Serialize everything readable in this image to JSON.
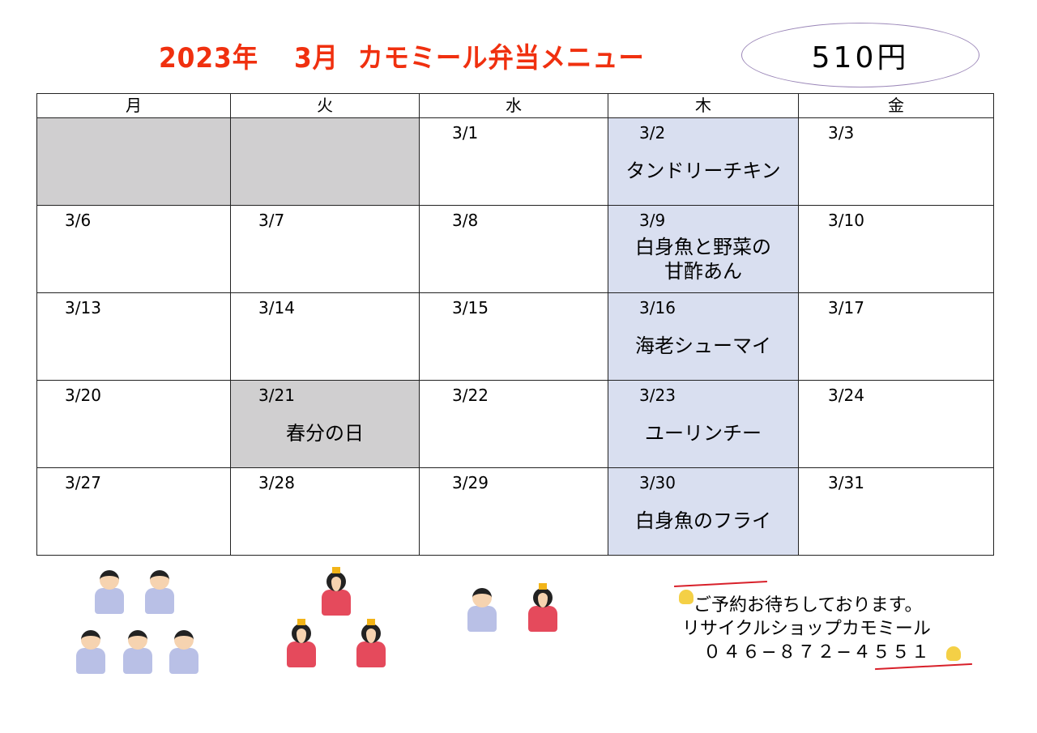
{
  "title": "2023年　 3月  カモミール弁当メニュー",
  "price": "510円",
  "weekdays": [
    "月",
    "火",
    "水",
    "木",
    "金"
  ],
  "weeks": [
    [
      {
        "date": "",
        "menu": "",
        "style": "gray"
      },
      {
        "date": "",
        "menu": "",
        "style": "gray"
      },
      {
        "date": "3/1",
        "menu": ""
      },
      {
        "date": "3/2",
        "menu": "タンドリーチキン",
        "style": "blue"
      },
      {
        "date": "3/3",
        "menu": ""
      }
    ],
    [
      {
        "date": "3/6",
        "menu": ""
      },
      {
        "date": "3/7",
        "menu": ""
      },
      {
        "date": "3/8",
        "menu": ""
      },
      {
        "date": "3/9",
        "menu": "白身魚と野菜の\n甘酢あん",
        "style": "blue"
      },
      {
        "date": "3/10",
        "menu": ""
      }
    ],
    [
      {
        "date": "3/13",
        "menu": ""
      },
      {
        "date": "3/14",
        "menu": ""
      },
      {
        "date": "3/15",
        "menu": ""
      },
      {
        "date": "3/16",
        "menu": "海老シューマイ",
        "style": "blue"
      },
      {
        "date": "3/17",
        "menu": ""
      }
    ],
    [
      {
        "date": "3/20",
        "menu": ""
      },
      {
        "date": "3/21",
        "menu": "春分の日",
        "style": "gray"
      },
      {
        "date": "3/22",
        "menu": ""
      },
      {
        "date": "3/23",
        "menu": "ユーリンチー",
        "style": "blue"
      },
      {
        "date": "3/24",
        "menu": ""
      }
    ],
    [
      {
        "date": "3/27",
        "menu": ""
      },
      {
        "date": "3/28",
        "menu": ""
      },
      {
        "date": "3/29",
        "menu": ""
      },
      {
        "date": "3/30",
        "menu": "白身魚のフライ",
        "style": "blue"
      },
      {
        "date": "3/31",
        "menu": ""
      }
    ]
  ],
  "footer": {
    "line1": "ご予約お待ちしております。",
    "line2": "リサイクルショップカモミール",
    "phone": "０４６−８７２−４５５１"
  },
  "colors": {
    "title": "#f0300f",
    "holiday_gray": "#d0cfd0",
    "thursday_blue": "#d9dff0",
    "oval": "#9b87b8"
  }
}
